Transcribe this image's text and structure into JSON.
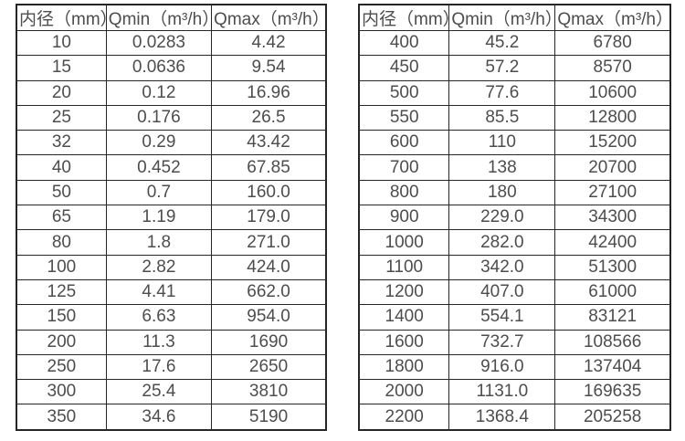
{
  "page": {
    "background_color": "#ffffff",
    "text_color": "#4d4d4d",
    "border_color": "#262626"
  },
  "tables": [
    {
      "name": "flow-table-small-diameters",
      "headers": [
        "内径（mm）",
        "Qmin（m³/h）",
        "Qmax（m³/h）"
      ],
      "rows": [
        [
          "10",
          "0.0283",
          "4.42"
        ],
        [
          "15",
          "0.0636",
          "9.54"
        ],
        [
          "20",
          "0.12",
          "16.96"
        ],
        [
          "25",
          "0.176",
          "26.5"
        ],
        [
          "32",
          "0.29",
          "43.42"
        ],
        [
          "40",
          "0.452",
          "67.85"
        ],
        [
          "50",
          "0.7",
          "160.0"
        ],
        [
          "65",
          "1.19",
          "179.0"
        ],
        [
          "80",
          "1.8",
          "271.0"
        ],
        [
          "100",
          "2.82",
          "424.0"
        ],
        [
          "125",
          "4.41",
          "662.0"
        ],
        [
          "150",
          "6.63",
          "954.0"
        ],
        [
          "200",
          "11.3",
          "1690"
        ],
        [
          "250",
          "17.6",
          "2650"
        ],
        [
          "300",
          "25.4",
          "3810"
        ],
        [
          "350",
          "34.6",
          "5190"
        ]
      ]
    },
    {
      "name": "flow-table-large-diameters",
      "headers": [
        "内径（mm）",
        "Qmin（m³/h）",
        "Qmax（m³/h）"
      ],
      "rows": [
        [
          "400",
          "45.2",
          "6780"
        ],
        [
          "450",
          "57.2",
          "8570"
        ],
        [
          "500",
          "77.6",
          "10600"
        ],
        [
          "550",
          "85.5",
          "12800"
        ],
        [
          "600",
          "110",
          "15200"
        ],
        [
          "700",
          "138",
          "20700"
        ],
        [
          "800",
          "180",
          "27100"
        ],
        [
          "900",
          "229.0",
          "34300"
        ],
        [
          "1000",
          "282.0",
          "42400"
        ],
        [
          "1100",
          "342.0",
          "51300"
        ],
        [
          "1200",
          "407.0",
          "61000"
        ],
        [
          "1400",
          "554.1",
          "83121"
        ],
        [
          "1600",
          "732.7",
          "108566"
        ],
        [
          "1800",
          "916.0",
          "137404"
        ],
        [
          "2000",
          "1131.0",
          "169635"
        ],
        [
          "2200",
          "1368.4",
          "205258"
        ]
      ]
    }
  ]
}
